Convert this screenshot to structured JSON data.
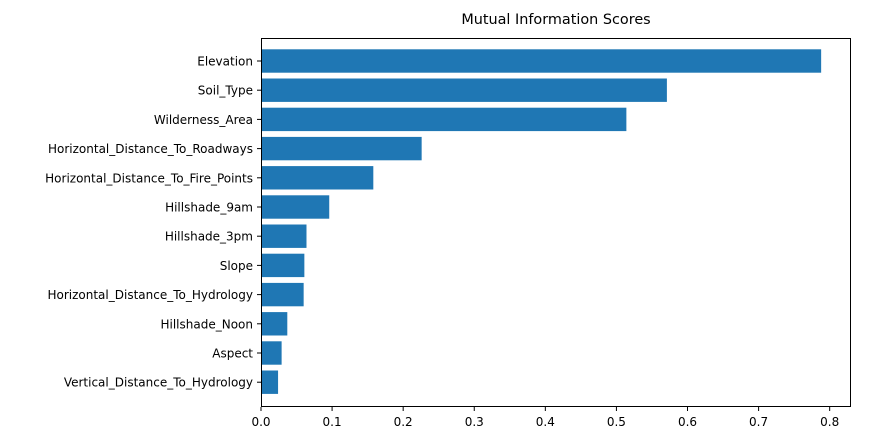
{
  "chart_data": {
    "type": "bar",
    "orientation": "horizontal",
    "title": "Mutual Information Scores",
    "xlabel": "",
    "ylabel": "",
    "categories": [
      "Elevation",
      "Soil_Type",
      "Wilderness_Area",
      "Horizontal_Distance_To_Roadways",
      "Horizontal_Distance_To_Fire_Points",
      "Hillshade_9am",
      "Hillshade_3pm",
      "Slope",
      "Horizontal_Distance_To_Hydrology",
      "Hillshade_Noon",
      "Aspect",
      "Vertical_Distance_To_Hydrology"
    ],
    "values": [
      0.788,
      0.571,
      0.514,
      0.226,
      0.158,
      0.096,
      0.064,
      0.061,
      0.06,
      0.037,
      0.029,
      0.024
    ],
    "xlim": [
      0,
      0.83
    ],
    "xticks": [
      "0.0",
      "0.1",
      "0.2",
      "0.3",
      "0.4",
      "0.5",
      "0.6",
      "0.7",
      "0.8"
    ],
    "grid": false,
    "legend": "none",
    "bar_color": "#1f77b4"
  }
}
